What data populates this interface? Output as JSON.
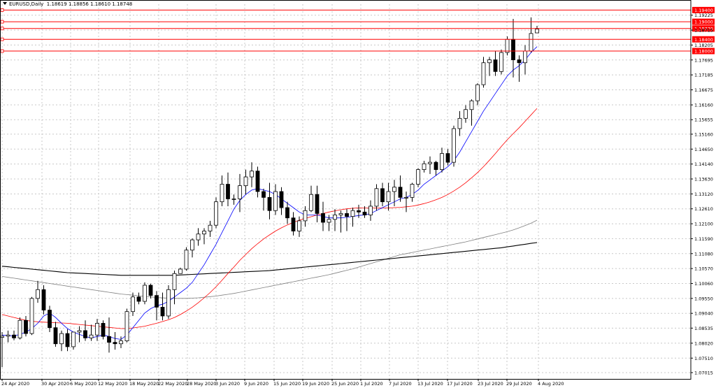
{
  "header": {
    "symbol_label": "EURUSD,Daily",
    "ohlc": "1.18619 1.18856 1.18610 1.18748"
  },
  "chart_data": {
    "type": "candlestick",
    "title": "EURUSD,Daily",
    "ylim": [
      1.068,
      1.196
    ],
    "y_ticks": [
      1.07015,
      1.0751,
      1.0802,
      1.08535,
      1.0904,
      1.0955,
      1.1006,
      1.1057,
      1.1108,
      1.1159,
      1.121,
      1.1261,
      1.1312,
      1.1363,
      1.1414,
      1.1465,
      1.1516,
      1.15655,
      1.1616,
      1.16675,
      1.17185,
      1.17695,
      1.18205,
      1.18715,
      1.19225
    ],
    "x_tick_labels": [
      "24 Apr 2020",
      "30 Apr 2020",
      "6 May 2020",
      "12 May 2020",
      "18 May 2020",
      "22 May 2020",
      "28 May 2020",
      "3 Jun 2020",
      "9 Jun 2020",
      "15 Jun 2020",
      "19 Jun 2020",
      "25 Jun 2020",
      "1 Jul 2020",
      "7 Jul 2020",
      "13 Jul 2020",
      "17 Jul 2020",
      "23 Jul 2020",
      "29 Jul 2020",
      "4 Aug 2020"
    ],
    "grid": true,
    "candles": [
      [
        1.0822,
        1.084,
        1.072,
        1.0826
      ],
      [
        1.0826,
        1.0845,
        1.0805,
        1.083
      ],
      [
        1.083,
        1.0845,
        1.0812,
        1.082
      ],
      [
        1.082,
        1.089,
        1.0815,
        1.088
      ],
      [
        1.088,
        1.0895,
        1.0825,
        1.0835
      ],
      [
        1.0835,
        1.096,
        1.083,
        1.0955
      ],
      [
        1.0955,
        1.1015,
        1.094,
        1.0985
      ],
      [
        1.0985,
        1.1,
        1.09,
        1.0915
      ],
      [
        1.0915,
        1.093,
        1.084,
        1.0855
      ],
      [
        1.0855,
        1.0875,
        1.079,
        1.08
      ],
      [
        1.08,
        1.0845,
        1.0775,
        1.0835
      ],
      [
        1.0835,
        1.085,
        1.0775,
        1.079
      ],
      [
        1.079,
        1.084,
        1.078,
        1.084
      ],
      [
        1.084,
        1.086,
        1.0805,
        1.0845
      ],
      [
        1.0845,
        1.088,
        1.081,
        1.082
      ],
      [
        1.082,
        1.0865,
        1.081,
        1.083
      ],
      [
        1.083,
        1.0885,
        1.081,
        1.087
      ],
      [
        1.087,
        1.088,
        1.0815,
        1.0825
      ],
      [
        1.0825,
        1.089,
        1.077,
        1.0805
      ],
      [
        1.0805,
        1.084,
        1.078,
        1.08
      ],
      [
        1.08,
        1.0825,
        1.0785,
        1.081
      ],
      [
        1.081,
        1.092,
        1.0805,
        1.091
      ],
      [
        1.091,
        1.0975,
        1.0895,
        1.096
      ],
      [
        1.096,
        1.0975,
        1.0935,
        1.0945
      ],
      [
        1.0945,
        1.101,
        1.0935,
        1.1
      ],
      [
        1.1,
        1.1005,
        1.0955,
        1.0965
      ],
      [
        1.0965,
        1.098,
        1.088,
        1.0925
      ],
      [
        1.0925,
        1.0975,
        1.088,
        1.0895
      ],
      [
        1.0895,
        1.1,
        1.0885,
        1.0985
      ],
      [
        1.0985,
        1.105,
        1.0935,
        1.104
      ],
      [
        1.104,
        1.106,
        1.104,
        1.1055
      ],
      [
        1.1055,
        1.113,
        1.105,
        1.112
      ],
      [
        1.112,
        1.116,
        1.1095,
        1.1155
      ],
      [
        1.1155,
        1.1195,
        1.1135,
        1.1175
      ],
      [
        1.1175,
        1.1195,
        1.114,
        1.1185
      ],
      [
        1.1185,
        1.122,
        1.1165,
        1.1205
      ],
      [
        1.1205,
        1.13,
        1.1195,
        1.1285
      ],
      [
        1.1285,
        1.1375,
        1.127,
        1.1345
      ],
      [
        1.1345,
        1.1385,
        1.127,
        1.1295
      ],
      [
        1.1295,
        1.131,
        1.1275,
        1.1295
      ],
      [
        1.1295,
        1.138,
        1.125,
        1.134
      ],
      [
        1.134,
        1.1395,
        1.131,
        1.137
      ],
      [
        1.137,
        1.142,
        1.1335,
        1.139
      ],
      [
        1.139,
        1.1405,
        1.13,
        1.132
      ],
      [
        1.132,
        1.133,
        1.1255,
        1.13
      ],
      [
        1.13,
        1.135,
        1.1225,
        1.1255
      ],
      [
        1.1255,
        1.1345,
        1.124,
        1.132
      ],
      [
        1.132,
        1.1335,
        1.124,
        1.1265
      ],
      [
        1.1265,
        1.1285,
        1.121,
        1.123
      ],
      [
        1.123,
        1.125,
        1.117,
        1.1185
      ],
      [
        1.1185,
        1.1235,
        1.1165,
        1.122
      ],
      [
        1.122,
        1.127,
        1.12,
        1.1255
      ],
      [
        1.1255,
        1.134,
        1.125,
        1.131
      ],
      [
        1.131,
        1.134,
        1.1215,
        1.1245
      ],
      [
        1.1245,
        1.1285,
        1.1185,
        1.1215
      ],
      [
        1.1215,
        1.124,
        1.1185,
        1.1225
      ],
      [
        1.1225,
        1.126,
        1.1185,
        1.124
      ],
      [
        1.124,
        1.1255,
        1.118,
        1.1245
      ],
      [
        1.1245,
        1.126,
        1.1185,
        1.1235
      ],
      [
        1.1235,
        1.1265,
        1.12,
        1.1255
      ],
      [
        1.1255,
        1.1275,
        1.123,
        1.125
      ],
      [
        1.125,
        1.127,
        1.123,
        1.124
      ],
      [
        1.124,
        1.129,
        1.122,
        1.127
      ],
      [
        1.127,
        1.1345,
        1.1255,
        1.133
      ],
      [
        1.133,
        1.135,
        1.127,
        1.1285
      ],
      [
        1.1285,
        1.135,
        1.1255,
        1.132
      ],
      [
        1.132,
        1.136,
        1.127,
        1.1335
      ],
      [
        1.1335,
        1.1375,
        1.1285,
        1.13
      ],
      [
        1.13,
        1.132,
        1.125,
        1.13
      ],
      [
        1.13,
        1.135,
        1.1285,
        1.1345
      ],
      [
        1.1345,
        1.14,
        1.1335,
        1.1395
      ],
      [
        1.1395,
        1.1425,
        1.1385,
        1.1415
      ],
      [
        1.1415,
        1.144,
        1.138,
        1.142
      ],
      [
        1.142,
        1.1425,
        1.1375,
        1.1395
      ],
      [
        1.1395,
        1.147,
        1.1385,
        1.145
      ],
      [
        1.145,
        1.1465,
        1.141,
        1.142
      ],
      [
        1.142,
        1.1545,
        1.1405,
        1.1535
      ],
      [
        1.1535,
        1.1595,
        1.151,
        1.157
      ],
      [
        1.157,
        1.1615,
        1.1555,
        1.16
      ],
      [
        1.16,
        1.1635,
        1.1545,
        1.163
      ],
      [
        1.163,
        1.169,
        1.1615,
        1.1685
      ],
      [
        1.1685,
        1.178,
        1.1675,
        1.176
      ],
      [
        1.176,
        1.178,
        1.1715,
        1.177
      ],
      [
        1.177,
        1.18,
        1.1715,
        1.173
      ],
      [
        1.173,
        1.1805,
        1.172,
        1.1795
      ],
      [
        1.1795,
        1.185,
        1.1785,
        1.184
      ],
      [
        1.184,
        1.191,
        1.171,
        1.177
      ],
      [
        1.177,
        1.1785,
        1.1695,
        1.176
      ],
      [
        1.176,
        1.182,
        1.172,
        1.18
      ],
      [
        1.18,
        1.1915,
        1.1795,
        1.186
      ],
      [
        1.1862,
        1.1886,
        1.1861,
        1.1875
      ]
    ],
    "ma_blue": [
      1.083,
      1.0828,
      1.0827,
      1.0832,
      1.084,
      1.0852,
      1.087,
      1.0895,
      1.0905,
      1.089,
      1.087,
      1.0852,
      1.084,
      1.0832,
      1.0825,
      1.082,
      1.0825,
      1.083,
      1.0825,
      1.0818,
      1.0815,
      1.083,
      1.0855,
      1.088,
      1.0905,
      1.092,
      1.093,
      1.0935,
      1.0945,
      1.096,
      1.0975,
      1.099,
      1.101,
      1.104,
      1.107,
      1.1105,
      1.114,
      1.118,
      1.122,
      1.126,
      1.129,
      1.131,
      1.1325,
      1.133,
      1.1325,
      1.132,
      1.131,
      1.1295,
      1.128,
      1.1265,
      1.125,
      1.124,
      1.124,
      1.124,
      1.1235,
      1.123,
      1.123,
      1.123,
      1.1232,
      1.1235,
      1.1238,
      1.124,
      1.1245,
      1.1255,
      1.1265,
      1.1275,
      1.1285,
      1.1295,
      1.13,
      1.131,
      1.1325,
      1.1345,
      1.136,
      1.1375,
      1.139,
      1.1405,
      1.1425,
      1.1455,
      1.149,
      1.1525,
      1.156,
      1.1595,
      1.1625,
      1.1655,
      1.1685,
      1.1715,
      1.1735,
      1.175,
      1.177,
      1.1795,
      1.1815
    ],
    "ma_red": [
      1.09,
      1.0895,
      1.089,
      1.0885,
      1.088,
      1.0877,
      1.0875,
      1.0874,
      1.0873,
      1.0872,
      1.0871,
      1.087,
      1.0868,
      1.0866,
      1.0864,
      1.0862,
      1.086,
      1.0858,
      1.0856,
      1.0854,
      1.0852,
      1.0852,
      1.0854,
      1.0857,
      1.086,
      1.0865,
      1.087,
      1.0876,
      1.0882,
      1.089,
      1.09,
      1.0912,
      1.0925,
      1.094,
      1.0957,
      1.0975,
      1.0995,
      1.1017,
      1.104,
      1.1062,
      1.1085,
      1.1105,
      1.1125,
      1.1142,
      1.1158,
      1.1172,
      1.1185,
      1.1196,
      1.1206,
      1.1215,
      1.1222,
      1.1228,
      1.1234,
      1.124,
      1.1245,
      1.125,
      1.1254,
      1.1258,
      1.1261,
      1.1263,
      1.1264,
      1.1264,
      1.1264,
      1.1264,
      1.1264,
      1.1264,
      1.1265,
      1.1266,
      1.1268,
      1.127,
      1.1274,
      1.1279,
      1.1285,
      1.1292,
      1.13,
      1.131,
      1.1322,
      1.1335,
      1.135,
      1.1367,
      1.1385,
      1.1405,
      1.1427,
      1.145,
      1.1474,
      1.1497,
      1.1518,
      1.1538,
      1.156,
      1.1582,
      1.1604
    ],
    "ma_gray": [
      1.103,
      1.1027,
      1.1024,
      1.1021,
      1.1018,
      1.1015,
      1.1012,
      1.1009,
      1.1006,
      1.1003,
      1.1,
      1.0997,
      1.0994,
      1.0991,
      1.0988,
      1.0985,
      1.0982,
      1.0979,
      1.0976,
      1.0973,
      1.097,
      1.0968,
      1.0966,
      1.0964,
      1.0962,
      1.096,
      1.0958,
      1.0957,
      1.0956,
      1.0955,
      1.0955,
      1.0955,
      1.0956,
      1.0957,
      1.0959,
      1.0961,
      1.0963,
      1.0966,
      1.0969,
      1.0972,
      1.0976,
      1.098,
      1.0984,
      1.0988,
      1.0992,
      1.0996,
      1.1,
      1.1004,
      1.1008,
      1.1012,
      1.1016,
      1.102,
      1.1024,
      1.1028,
      1.1032,
      1.1036,
      1.1041,
      1.1046,
      1.1051,
      1.1056,
      1.1062,
      1.1068,
      1.1074,
      1.108,
      1.1086,
      1.1092,
      1.1098,
      1.1104,
      1.1108,
      1.1112,
      1.1116,
      1.112,
      1.1124,
      1.1128,
      1.1132,
      1.1136,
      1.114,
      1.1144,
      1.1148,
      1.1153,
      1.1158,
      1.1163,
      1.1168,
      1.1173,
      1.1178,
      1.1183,
      1.1189,
      1.1196,
      1.1204,
      1.1212,
      1.1222
    ],
    "ma_black": [
      1.1065,
      1.1063,
      1.1061,
      1.1059,
      1.1057,
      1.1055,
      1.1053,
      1.1051,
      1.1049,
      1.1047,
      1.1045,
      1.1043,
      1.1042,
      1.1041,
      1.104,
      1.1039,
      1.1038,
      1.1037,
      1.1036,
      1.1035,
      1.1034,
      1.1034,
      1.1034,
      1.1034,
      1.1034,
      1.1034,
      1.1034,
      1.1034,
      1.1034,
      1.1034,
      1.1035,
      1.1036,
      1.1037,
      1.1038,
      1.1039,
      1.104,
      1.1041,
      1.1042,
      1.1043,
      1.1044,
      1.1045,
      1.1046,
      1.1047,
      1.1048,
      1.1049,
      1.105,
      1.1052,
      1.1054,
      1.1056,
      1.1058,
      1.106,
      1.1062,
      1.1064,
      1.1066,
      1.1068,
      1.107,
      1.1072,
      1.1074,
      1.1076,
      1.1078,
      1.108,
      1.1082,
      1.1084,
      1.1086,
      1.1088,
      1.109,
      1.1092,
      1.1094,
      1.1096,
      1.1098,
      1.11,
      1.1102,
      1.1104,
      1.1106,
      1.1108,
      1.111,
      1.1112,
      1.1114,
      1.1116,
      1.1118,
      1.112,
      1.1122,
      1.1124,
      1.1126,
      1.1128,
      1.1131,
      1.1134,
      1.1137,
      1.114,
      1.1143,
      1.1146
    ],
    "horizontal_levels": [
      {
        "value": 1.194,
        "label": "1.19400"
      },
      {
        "value": 1.19,
        "label": "1.19000"
      },
      {
        "value": 1.1877,
        "label": "1.18770"
      },
      {
        "value": 1.184,
        "label": "1.18400"
      },
      {
        "value": 1.18,
        "label": "1.18000"
      }
    ],
    "colors": {
      "background": "#ffffff",
      "grid": "#c8c8c8",
      "candle": "#000000",
      "ma_blue": "#0000ff",
      "ma_red": "#ff0000",
      "ma_gray": "#808080",
      "ma_black": "#000000",
      "level_line": "#ff0000",
      "level_label_bg": "#ff0000",
      "level_label_text": "#ffffff"
    }
  }
}
